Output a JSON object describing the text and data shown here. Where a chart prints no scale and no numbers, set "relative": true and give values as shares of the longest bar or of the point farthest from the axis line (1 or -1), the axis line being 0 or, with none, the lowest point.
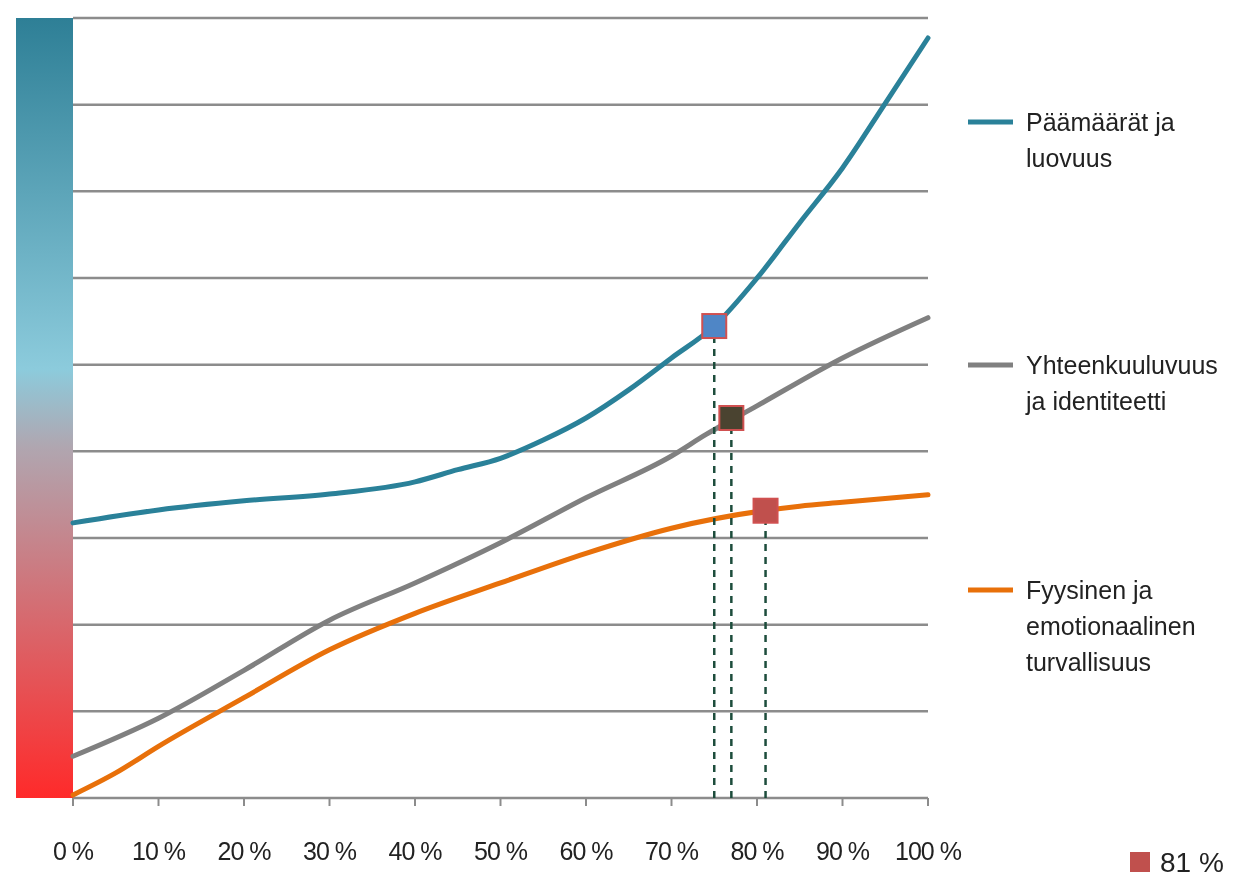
{
  "chart_data": {
    "type": "line",
    "relative": true,
    "grid": "y",
    "legend": "right",
    "xlim": [
      0,
      100
    ],
    "xticks": [
      {
        "value": 0,
        "label": "0 %"
      },
      {
        "value": 10,
        "label": "10 %"
      },
      {
        "value": 20,
        "label": "20 %"
      },
      {
        "value": 30,
        "label": "30 %"
      },
      {
        "value": 40,
        "label": "40 %"
      },
      {
        "value": 50,
        "label": "50 %"
      },
      {
        "value": 60,
        "label": "60 %"
      },
      {
        "value": 70,
        "label": "70 %"
      },
      {
        "value": 80,
        "label": "80 %"
      },
      {
        "value": 90,
        "label": "90 %"
      },
      {
        "value": 100,
        "label": "100 %"
      }
    ],
    "series": [
      {
        "name": "Päämäärät ja luovuus",
        "color": "#2a8199",
        "x": [
          0,
          10,
          20,
          30,
          40,
          45,
          50,
          55,
          60,
          65,
          70,
          75,
          80,
          85,
          90,
          95,
          100
        ],
        "values": [
          0.362,
          0.379,
          0.391,
          0.4,
          0.416,
          0.432,
          0.447,
          0.471,
          0.5,
          0.537,
          0.579,
          0.621,
          0.684,
          0.757,
          0.829,
          0.914,
          1
        ]
      },
      {
        "name": "Yhteenkuuluvuus ja identiteetti",
        "color": "#808080",
        "x": [
          0,
          10,
          20,
          30,
          40,
          50,
          60,
          70,
          74,
          80,
          90,
          100
        ],
        "values": [
          0.055,
          0.105,
          0.168,
          0.234,
          0.283,
          0.336,
          0.395,
          0.45,
          0.478,
          0.516,
          0.579,
          0.632
        ]
      },
      {
        "name": "Fyysinen ja emotionaalinen turvallisuus",
        "color": "#e8700a",
        "x": [
          0,
          5,
          10,
          20,
          30,
          40,
          50,
          60,
          70,
          85,
          90,
          100
        ],
        "values": [
          0.004,
          0.033,
          0.068,
          0.132,
          0.195,
          0.243,
          0.283,
          0.322,
          0.355,
          0.384,
          0.389,
          0.399
        ]
      },
      {
        "type": "lollipop",
        "color": "#4f86c6",
        "marker": "square",
        "line_style": "dashed",
        "x": [
          75
        ],
        "values": [
          0.621
        ]
      },
      {
        "type": "lollipop",
        "color": "#4a4330",
        "marker": "square",
        "line_style": "dashed",
        "x": [
          77
        ],
        "values": [
          0.5
        ]
      },
      {
        "type": "lollipop",
        "name": "81 %",
        "color": "#c0504d",
        "marker": "square",
        "line_style": "dashed",
        "x": [
          81
        ],
        "values": [
          0.378
        ]
      }
    ]
  }
}
